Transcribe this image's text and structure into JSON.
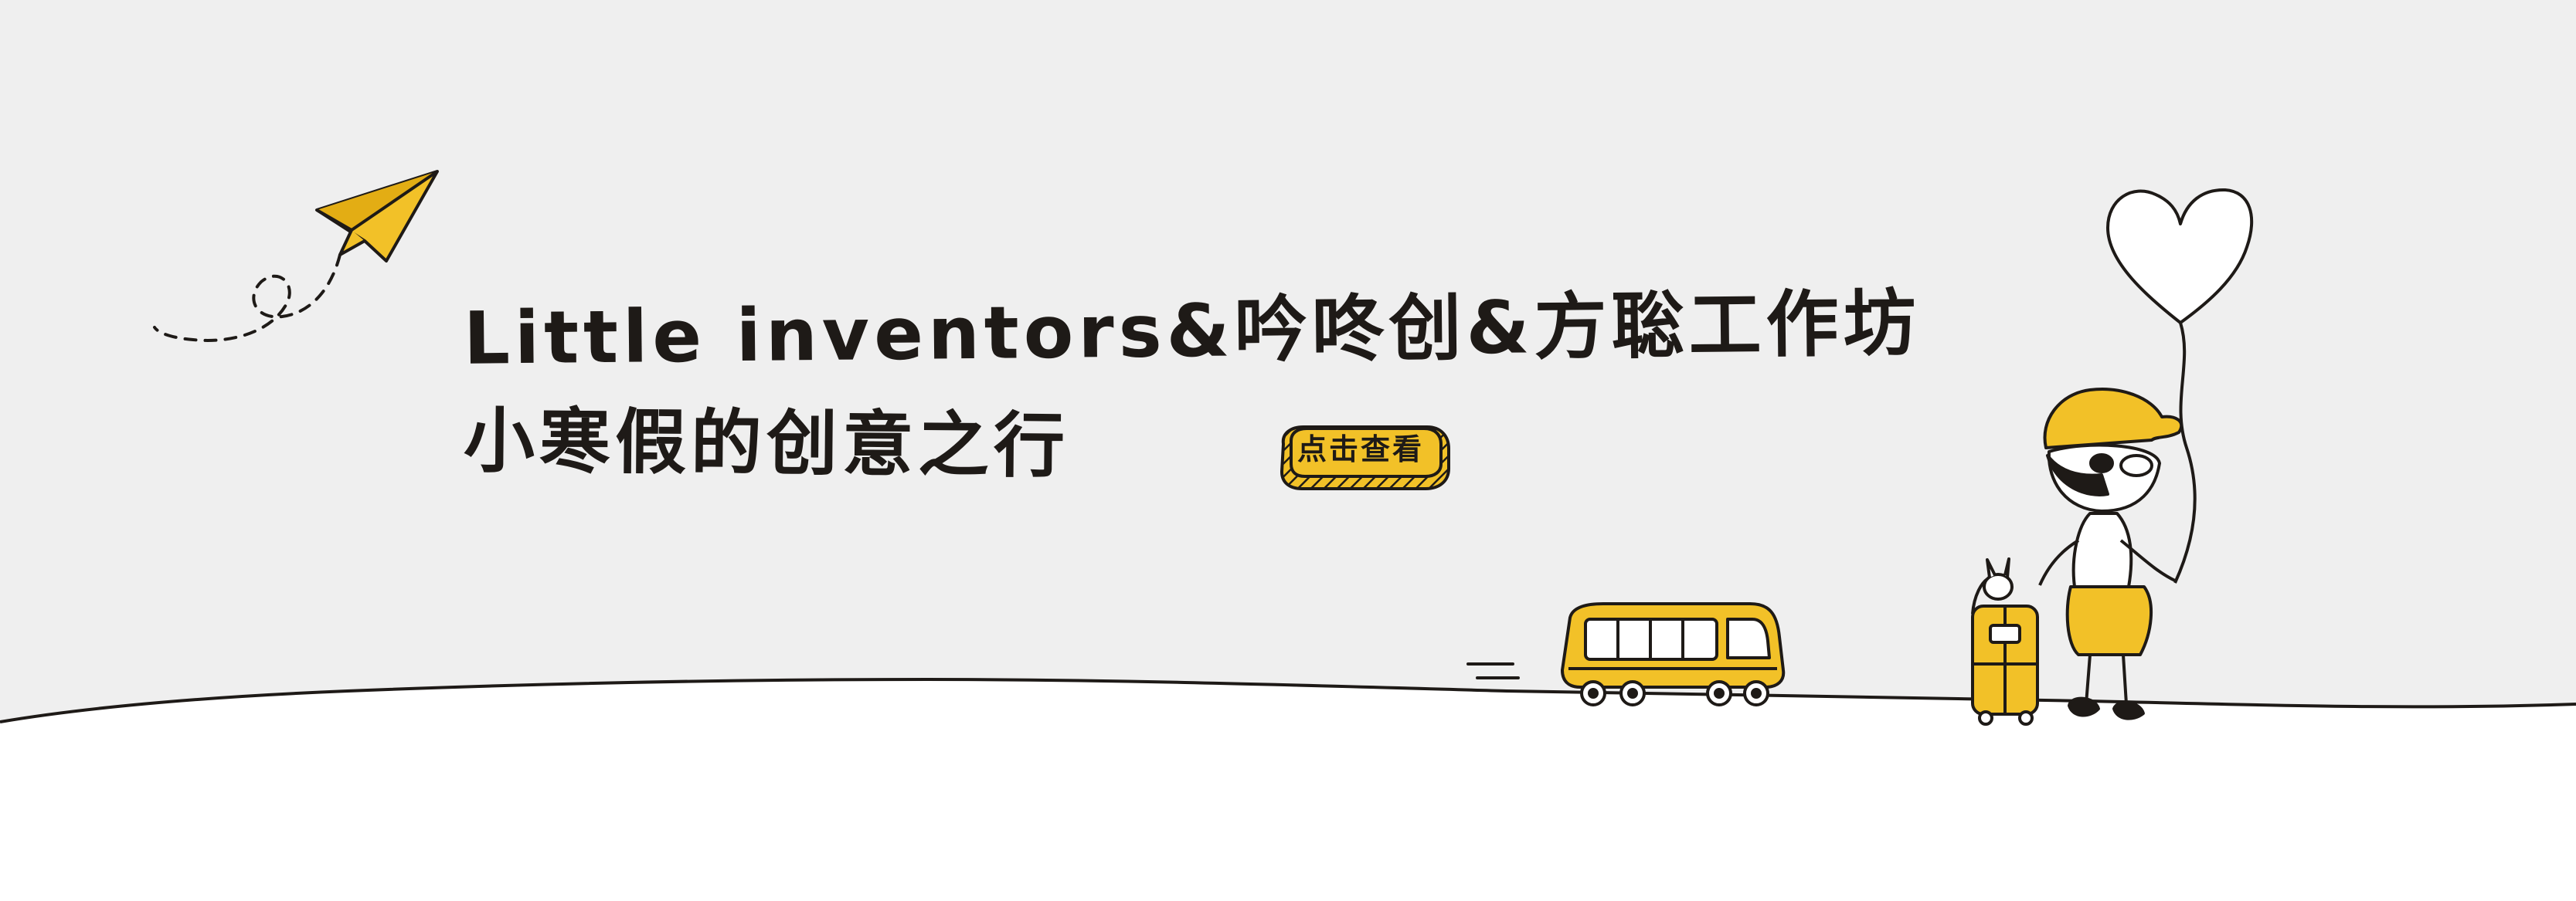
{
  "banner": {
    "title_line_1": "Little inventors&吟咚创&方聡工作坊",
    "title_line_2": "小寒假的创意之行",
    "cta_label": "点击查看"
  },
  "colors": {
    "background_gray": "#efefef",
    "ground_white": "#ffffff",
    "accent_yellow": "#f2c128",
    "ink": "#1e1a17"
  },
  "icons": [
    "paper-plane-icon",
    "bus-icon",
    "suitcase-icon",
    "child-with-cap-icon",
    "heart-balloon-icon"
  ]
}
